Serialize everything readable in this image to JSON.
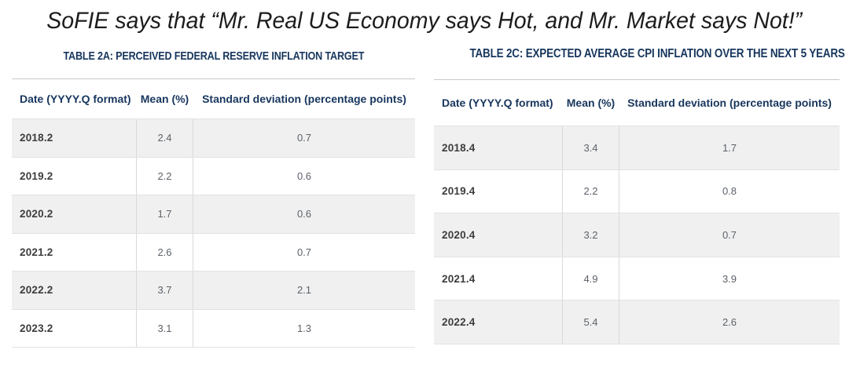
{
  "slide_title": "SoFIE says that “Mr. Real US Economy says Hot, and Mr. Market says Not!”",
  "colors": {
    "heading_navy": "#17365d",
    "title_text": "#1c1c1c",
    "alt_row_bg": "#f0f0f0",
    "row_border": "#e2e2e2",
    "cell_border": "#d9d9d9",
    "date_text": "#3d3d3d",
    "value_text": "#5c6269"
  },
  "tables": [
    {
      "id": "2A",
      "title": "TABLE 2A: PERCEIVED FEDERAL RESERVE INFLATION TARGET",
      "columns": [
        "Date (YYYY.Q format)",
        "Mean (%)",
        "Standard deviation (percentage points)"
      ],
      "rows": [
        {
          "date": "2018.2",
          "mean": "2.4",
          "sd": "0.7"
        },
        {
          "date": "2019.2",
          "mean": "2.2",
          "sd": "0.6"
        },
        {
          "date": "2020.2",
          "mean": "1.7",
          "sd": "0.6"
        },
        {
          "date": "2021.2",
          "mean": "2.6",
          "sd": "0.7"
        },
        {
          "date": "2022.2",
          "mean": "3.7",
          "sd": "2.1"
        },
        {
          "date": "2023.2",
          "mean": "3.1",
          "sd": "1.3"
        }
      ]
    },
    {
      "id": "2C",
      "title": "TABLE 2C: EXPECTED AVERAGE CPI INFLATION OVER THE NEXT 5 YEARS",
      "columns": [
        "Date (YYYY.Q format)",
        "Mean (%)",
        "Standard deviation (percentage points)"
      ],
      "rows": [
        {
          "date": "2018.4",
          "mean": "3.4",
          "sd": "1.7"
        },
        {
          "date": "2019.4",
          "mean": "2.2",
          "sd": "0.8"
        },
        {
          "date": "2020.4",
          "mean": "3.2",
          "sd": "0.7"
        },
        {
          "date": "2021.4",
          "mean": "4.9",
          "sd": "3.9"
        },
        {
          "date": "2022.4",
          "mean": "5.4",
          "sd": "2.6"
        }
      ]
    }
  ],
  "chart_data": [
    {
      "type": "table",
      "title": "TABLE 2A: PERCEIVED FEDERAL RESERVE INFLATION TARGET",
      "columns": [
        "Date (YYYY.Q format)",
        "Mean (%)",
        "Standard deviation (percentage points)"
      ],
      "rows": [
        [
          "2018.2",
          2.4,
          0.7
        ],
        [
          "2019.2",
          2.2,
          0.6
        ],
        [
          "2020.2",
          1.7,
          0.6
        ],
        [
          "2021.2",
          2.6,
          0.7
        ],
        [
          "2022.2",
          3.7,
          2.1
        ],
        [
          "2023.2",
          3.1,
          1.3
        ]
      ]
    },
    {
      "type": "table",
      "title": "TABLE 2C: EXPECTED AVERAGE CPI INFLATION OVER THE NEXT 5 YEARS",
      "columns": [
        "Date (YYYY.Q format)",
        "Mean (%)",
        "Standard deviation (percentage points)"
      ],
      "rows": [
        [
          "2018.4",
          3.4,
          1.7
        ],
        [
          "2019.4",
          2.2,
          0.8
        ],
        [
          "2020.4",
          3.2,
          0.7
        ],
        [
          "2021.4",
          4.9,
          3.9
        ],
        [
          "2022.4",
          5.4,
          2.6
        ]
      ]
    }
  ]
}
